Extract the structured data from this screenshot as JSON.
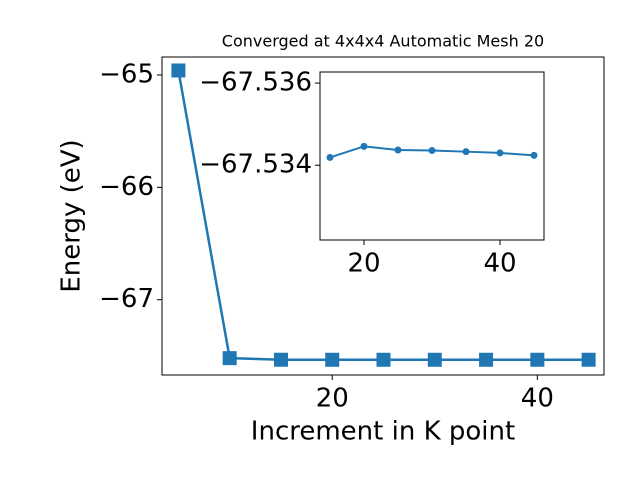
{
  "chart_data": [
    {
      "type": "line",
      "title": "Converged at 4x4x4 Automatic Mesh 20",
      "xlabel": "Increment in K point",
      "ylabel": "Energy (eV)",
      "x": [
        5,
        10,
        15,
        20,
        25,
        30,
        35,
        40,
        45
      ],
      "series": [
        {
          "color": "#1f77b4",
          "marker": "square",
          "values": [
            -64.96,
            -67.52,
            -67.53419,
            -67.53446,
            -67.53437,
            -67.53436,
            -67.53433,
            -67.5343,
            -67.53424
          ]
        }
      ],
      "xlim": [
        3.4,
        46.5
      ],
      "xticks": [
        20,
        40
      ],
      "ylim": [
        -67.67,
        -64.84
      ],
      "yticks": [
        {
          "value": -67,
          "label": "−67"
        },
        {
          "value": -66,
          "label": "−66"
        },
        {
          "value": -65,
          "label": "−65"
        }
      ]
    },
    {
      "type": "line",
      "x": [
        15,
        20,
        25,
        30,
        35,
        40,
        45
      ],
      "series": [
        {
          "color": "#1f77b4",
          "marker": "circle",
          "values": [
            -67.53419,
            -67.53446,
            -67.53437,
            -67.53436,
            -67.53433,
            -67.5343,
            -67.53424
          ]
        }
      ],
      "xlim": [
        13.53,
        46.47
      ],
      "xticks": [
        20,
        40
      ],
      "ylim": [
        -67.53218,
        -67.53627
      ],
      "yticks": [
        {
          "value": -67.534,
          "label": "−67.534"
        },
        {
          "value": -67.536,
          "label": "−67.536"
        }
      ]
    }
  ]
}
